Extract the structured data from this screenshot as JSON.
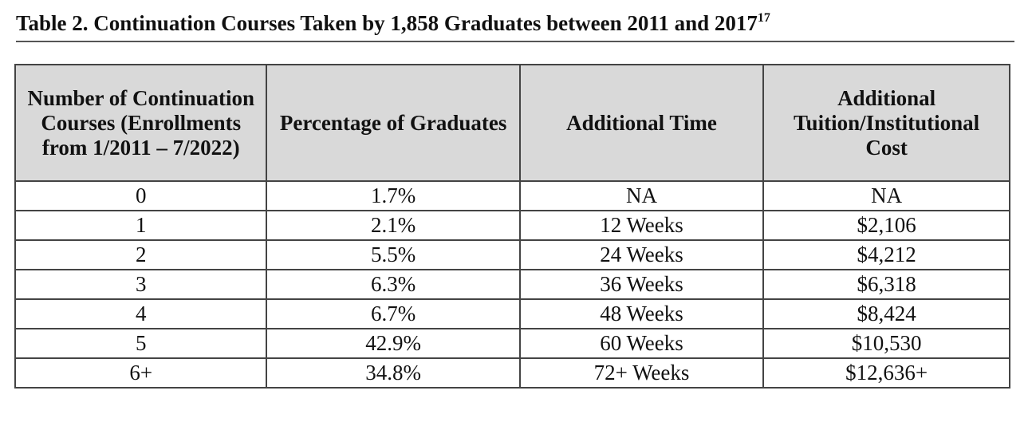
{
  "header": {
    "title": "Table 2. Continuation Courses Taken by 1,858 Graduates between 2011 and 2017",
    "footnote": "17"
  },
  "table": {
    "columns": [
      "Number of Continuation Courses (Enrollments from 1/2011 – 7/2022)",
      "Percentage of Graduates",
      "Additional Time",
      "Additional Tuition/Institutional Cost"
    ],
    "rows": [
      [
        "0",
        "1.7%",
        "NA",
        "NA"
      ],
      [
        "1",
        "2.1%",
        "12 Weeks",
        "$2,106"
      ],
      [
        "2",
        "5.5%",
        "24 Weeks",
        "$4,212"
      ],
      [
        "3",
        "6.3%",
        "36 Weeks",
        "$6,318"
      ],
      [
        "4",
        "6.7%",
        "48 Weeks",
        "$8,424"
      ],
      [
        "5",
        "42.9%",
        "60 Weeks",
        "$10,530"
      ],
      [
        "6+",
        "34.8%",
        "72+ Weeks",
        "$12,636+"
      ]
    ]
  }
}
